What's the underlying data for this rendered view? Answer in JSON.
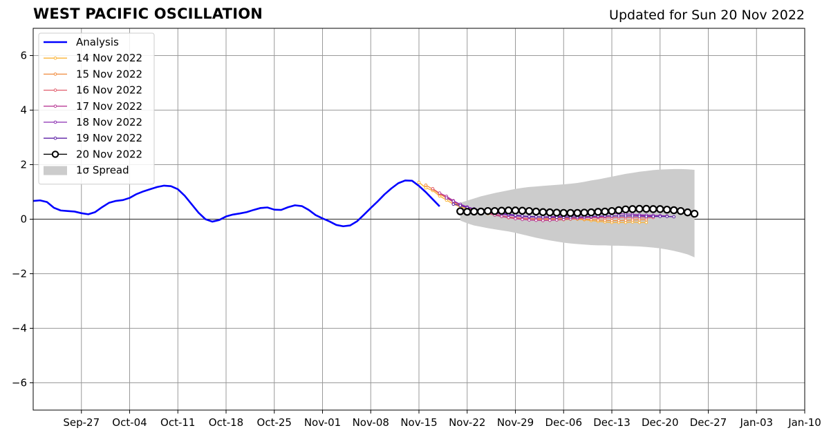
{
  "header": {
    "title": "WEST PACIFIC OSCILLATION",
    "updated": "Updated for Sun 20 Nov 2022"
  },
  "colors": {
    "analysis": "#0000ff",
    "spread": "#cccccc",
    "grid": "#999999",
    "zero_line": "#444444",
    "f_14nov": "#f9b233",
    "f_15nov": "#f08a3c",
    "f_16nov": "#e05a6a",
    "f_17nov": "#b83a95",
    "f_18nov": "#8a2ab0",
    "f_19nov": "#5b1ea5",
    "f_20nov": "#000000"
  },
  "chart_data": {
    "type": "line",
    "title": "WEST PACIFIC OSCILLATION",
    "xlabel": "",
    "ylabel": "",
    "x_range": [
      "2022-09-20",
      "2023-01-10"
    ],
    "ylim": [
      -7,
      7
    ],
    "yticks": [
      -6,
      -4,
      -2,
      0,
      2,
      4,
      6
    ],
    "ytick_labels": [
      "−6",
      "−4",
      "−2",
      "0",
      "2",
      "4",
      "6"
    ],
    "xticks": [
      "2022-09-27",
      "2022-10-04",
      "2022-10-11",
      "2022-10-18",
      "2022-10-25",
      "2022-11-01",
      "2022-11-08",
      "2022-11-15",
      "2022-11-22",
      "2022-11-29",
      "2022-12-06",
      "2022-12-13",
      "2022-12-20",
      "2022-12-27",
      "2023-01-03",
      "2023-01-10"
    ],
    "xtick_labels": [
      "Sep-27",
      "Oct-04",
      "Oct-11",
      "Oct-18",
      "Oct-25",
      "Nov-01",
      "Nov-08",
      "Nov-15",
      "Nov-22",
      "Nov-29",
      "Dec-06",
      "Dec-13",
      "Dec-20",
      "Dec-27",
      "Jan-03",
      "Jan-10"
    ],
    "grid": true,
    "legend_position": "top-left",
    "series": [
      {
        "name": "Analysis",
        "style": "analysis",
        "color": "#0000ff",
        "start": "2022-09-20",
        "values": [
          0.67,
          0.69,
          0.63,
          0.42,
          0.32,
          0.3,
          0.28,
          0.22,
          0.18,
          0.26,
          0.44,
          0.6,
          0.67,
          0.7,
          0.78,
          0.92,
          1.02,
          1.1,
          1.18,
          1.23,
          1.21,
          1.1,
          0.86,
          0.55,
          0.24,
          0.0,
          -0.09,
          -0.03,
          0.1,
          0.17,
          0.21,
          0.26,
          0.34,
          0.41,
          0.43,
          0.35,
          0.34,
          0.44,
          0.51,
          0.48,
          0.34,
          0.15,
          0.03,
          -0.08,
          -0.21,
          -0.26,
          -0.23,
          -0.08,
          0.16,
          0.41,
          0.65,
          0.91,
          1.13,
          1.32,
          1.42,
          1.41,
          1.22,
          0.99,
          0.73,
          0.47
        ]
      },
      {
        "name": "14 Nov 2022",
        "style": "small",
        "color": "#f9b233",
        "start": "2022-11-15",
        "values": [
          1.35,
          1.15,
          1.05,
          0.85,
          0.7,
          0.55,
          0.45,
          0.38,
          0.33,
          0.28,
          0.2,
          0.15,
          0.1,
          0.05,
          0.02,
          0.0,
          -0.02,
          -0.03,
          -0.05,
          -0.04,
          -0.03,
          -0.02,
          0.0,
          0.0,
          -0.02,
          -0.05,
          -0.08,
          -0.1,
          -0.12,
          -0.12,
          -0.12,
          -0.1,
          -0.12,
          -0.12
        ]
      },
      {
        "name": "15 Nov 2022",
        "style": "small",
        "color": "#f08a3c",
        "start": "2022-11-16",
        "values": [
          1.25,
          1.1,
          0.92,
          0.78,
          0.62,
          0.5,
          0.42,
          0.35,
          0.3,
          0.25,
          0.18,
          0.12,
          0.08,
          0.05,
          0.03,
          0.02,
          0.0,
          -0.01,
          0.0,
          0.01,
          0.02,
          0.03,
          0.02,
          0.0,
          -0.01,
          -0.03,
          -0.04,
          -0.05,
          -0.05,
          -0.04,
          -0.03,
          -0.02,
          -0.02
        ]
      },
      {
        "name": "16 Nov 2022",
        "style": "small",
        "color": "#e05a6a",
        "start": "2022-11-17",
        "values": [
          1.12,
          0.95,
          0.8,
          0.65,
          0.52,
          0.42,
          0.36,
          0.3,
          0.24,
          0.18,
          0.12,
          0.08,
          0.05,
          0.03,
          0.02,
          0.02,
          0.03,
          0.04,
          0.05,
          0.06,
          0.06,
          0.07,
          0.07,
          0.06,
          0.05,
          0.05,
          0.05,
          0.06,
          0.06,
          0.06,
          0.05,
          0.05,
          0.06
        ]
      },
      {
        "name": "17 Nov 2022",
        "style": "small",
        "color": "#b83a95",
        "start": "2022-11-18",
        "values": [
          0.96,
          0.84,
          0.68,
          0.54,
          0.45,
          0.36,
          0.28,
          0.22,
          0.15,
          0.1,
          0.06,
          0.02,
          -0.01,
          -0.03,
          -0.04,
          -0.05,
          -0.04,
          -0.03,
          -0.01,
          0.01,
          0.03,
          0.05,
          0.07,
          0.08,
          0.1,
          0.11,
          0.12,
          0.12,
          0.13,
          0.13,
          0.12,
          0.12,
          0.12
        ]
      },
      {
        "name": "18 Nov 2022",
        "style": "small",
        "color": "#8a2ab0",
        "start": "2022-11-19",
        "values": [
          0.78,
          0.66,
          0.55,
          0.45,
          0.38,
          0.32,
          0.26,
          0.22,
          0.18,
          0.15,
          0.12,
          0.1,
          0.08,
          0.08,
          0.08,
          0.09,
          0.1,
          0.11,
          0.13,
          0.15,
          0.17,
          0.19,
          0.2,
          0.21,
          0.21,
          0.2,
          0.19,
          0.18,
          0.16,
          0.15,
          0.14,
          0.13,
          0.12
        ]
      },
      {
        "name": "19 Nov 2022",
        "style": "small",
        "color": "#5b1ea5",
        "start": "2022-11-20",
        "values": [
          0.55,
          0.5,
          0.42,
          0.38,
          0.32,
          0.28,
          0.25,
          0.22,
          0.18,
          0.15,
          0.12,
          0.1,
          0.09,
          0.08,
          0.07,
          0.07,
          0.07,
          0.08,
          0.08,
          0.09,
          0.1,
          0.11,
          0.12,
          0.12,
          0.12,
          0.12,
          0.12,
          0.11,
          0.1,
          0.1,
          0.1,
          0.1,
          0.09
        ]
      },
      {
        "name": "20 Nov 2022",
        "style": "open",
        "color": "#000000",
        "start": "2022-11-21",
        "values": [
          0.29,
          0.27,
          0.28,
          0.28,
          0.3,
          0.3,
          0.31,
          0.32,
          0.32,
          0.31,
          0.3,
          0.28,
          0.26,
          0.25,
          0.24,
          0.23,
          0.23,
          0.23,
          0.24,
          0.25,
          0.27,
          0.28,
          0.3,
          0.33,
          0.36,
          0.37,
          0.38,
          0.38,
          0.37,
          0.37,
          0.35,
          0.33,
          0.3,
          0.25,
          0.2
        ]
      }
    ],
    "spread": {
      "name": "1σ Spread",
      "color": "#cccccc",
      "start": "2022-11-21",
      "upper": [
        0.6,
        0.68,
        0.76,
        0.84,
        0.9,
        0.96,
        1.01,
        1.06,
        1.11,
        1.15,
        1.18,
        1.2,
        1.22,
        1.24,
        1.26,
        1.28,
        1.3,
        1.33,
        1.37,
        1.42,
        1.46,
        1.51,
        1.56,
        1.61,
        1.66,
        1.7,
        1.74,
        1.77,
        1.8,
        1.82,
        1.83,
        1.84,
        1.84,
        1.83,
        1.81
      ],
      "lower": [
        -0.05,
        -0.15,
        -0.23,
        -0.28,
        -0.33,
        -0.37,
        -0.41,
        -0.45,
        -0.5,
        -0.56,
        -0.62,
        -0.68,
        -0.73,
        -0.78,
        -0.82,
        -0.86,
        -0.89,
        -0.91,
        -0.93,
        -0.95,
        -0.96,
        -0.96,
        -0.97,
        -0.97,
        -0.98,
        -0.99,
        -1.0,
        -1.02,
        -1.04,
        -1.07,
        -1.11,
        -1.16,
        -1.22,
        -1.29,
        -1.4
      ]
    }
  }
}
